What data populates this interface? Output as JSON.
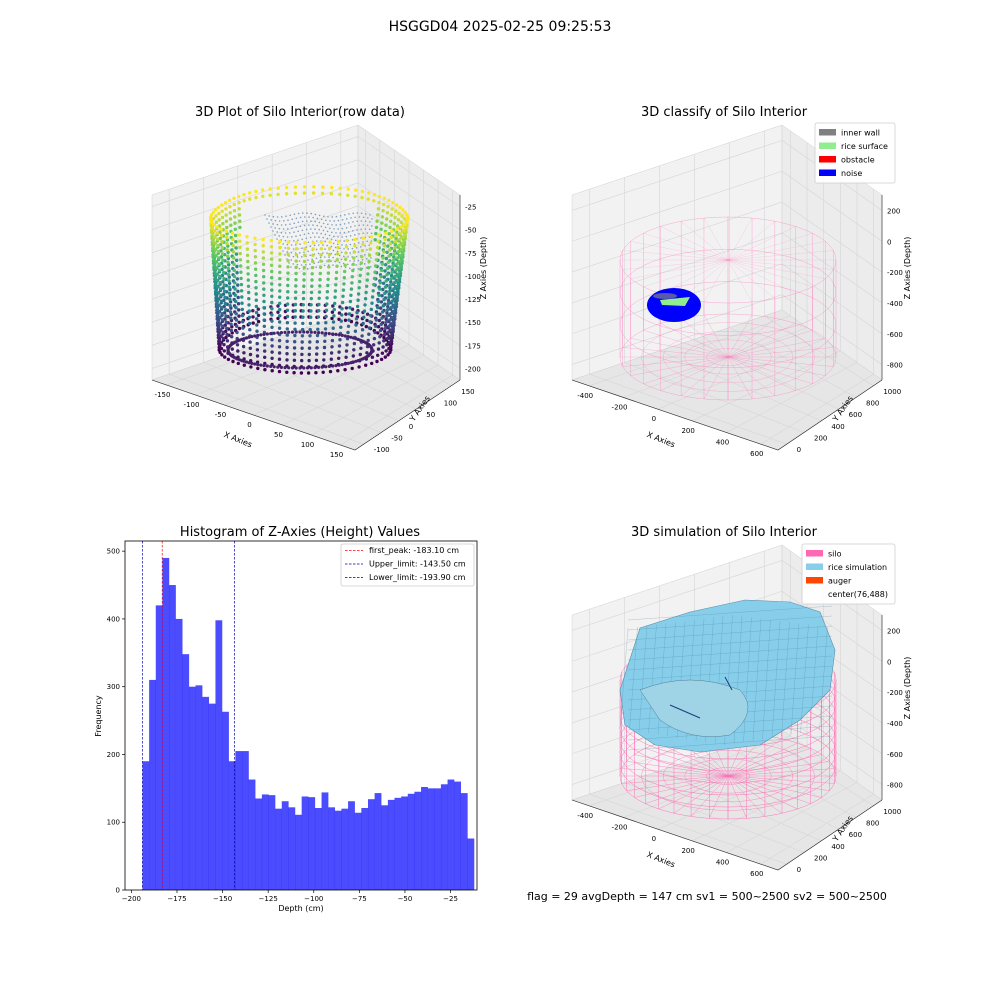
{
  "suptitle": "HSGGD04 2025-02-25 09:25:53",
  "footer": "flag = 29  avgDepth = 147 cm  sv1 = 500~2500  sv2 = 500~2500",
  "chart_data": [
    {
      "type": "scatter3d",
      "title": "3D Plot of Silo Interior(row data)",
      "xlabel": "X Axies",
      "ylabel": "Y Axies",
      "zlabel": "Z Axies (Depth)",
      "x_ticks": [
        "-150",
        "-100",
        "-50",
        "0",
        "50",
        "100",
        "150"
      ],
      "y_ticks": [
        "-100",
        "-50",
        "0",
        "50",
        "100",
        "150"
      ],
      "z_ticks": [
        "-25",
        "-50",
        "-75",
        "-100",
        "-125",
        "-150",
        "-175",
        "-200"
      ],
      "xlim": [
        -170,
        170
      ],
      "ylim": [
        -120,
        160
      ],
      "zlim": [
        -205,
        -15
      ],
      "colormap": "viridis",
      "grid": true
    },
    {
      "type": "scatter3d",
      "title": "3D classify of Silo Interior",
      "xlabel": "X Axies",
      "ylabel": "Y Axies",
      "zlabel": "Z Axies (Depth)",
      "x_ticks": [
        "-400",
        "-200",
        "0",
        "200",
        "400",
        "600"
      ],
      "y_ticks": [
        "0",
        "200",
        "400",
        "600",
        "800",
        "1000"
      ],
      "z_ticks": [
        "200",
        "0",
        "-200",
        "-400",
        "-600",
        "-800"
      ],
      "xlim": [
        -500,
        650
      ],
      "ylim": [
        -80,
        1050
      ],
      "zlim": [
        -900,
        300
      ],
      "legend_position": "upper right",
      "legend": [
        {
          "label": "inner wall",
          "color": "#808080"
        },
        {
          "label": "rice surface",
          "color": "#90ee90"
        },
        {
          "label": "obstacle",
          "color": "#ff0000"
        },
        {
          "label": "noise",
          "color": "#0000ff"
        }
      ],
      "silo_wire_color": "#ff69b4",
      "grid": true
    },
    {
      "type": "histogram",
      "title": "Histogram of Z-Axies (Height) Values",
      "xlabel": "Depth (cm)",
      "ylabel": "Frequency",
      "x_ticks": [
        -200,
        -175,
        -150,
        -125,
        -100,
        -75,
        -50,
        -25
      ],
      "y_ticks": [
        0,
        100,
        200,
        300,
        400,
        500
      ],
      "xlim": [
        -203.5,
        -10.5
      ],
      "ylim": [
        0,
        515
      ],
      "bin_start": -193.9,
      "bin_width": 3.636,
      "bar_color": "#0000ff",
      "counts": [
        190,
        310,
        420,
        490,
        450,
        400,
        348,
        300,
        302,
        285,
        275,
        398,
        263,
        190,
        205,
        205,
        163,
        135,
        141,
        140,
        120,
        131,
        122,
        111,
        138,
        137,
        121,
        144,
        122,
        117,
        120,
        131,
        114,
        121,
        134,
        143,
        125,
        133,
        136,
        138,
        142,
        145,
        152,
        150,
        150,
        156,
        163,
        160,
        143,
        76
      ],
      "vlines": [
        {
          "label": "first_peak: -183.10 cm",
          "x": -183.1,
          "color": "#ff0000"
        },
        {
          "label": "Upper_limit: -143.50 cm",
          "x": -143.5,
          "color": "#0000aa"
        },
        {
          "label": "Lower_limit: -193.90 cm",
          "x": -193.9,
          "color": "#0000aa"
        }
      ],
      "legend_position": "upper right",
      "grid": false
    },
    {
      "type": "surface3d",
      "title": "3D simulation of Silo Interior",
      "xlabel": "X Axies",
      "ylabel": "Y Axies",
      "zlabel": "Z Axies (Depth)",
      "x_ticks": [
        "-400",
        "-200",
        "0",
        "200",
        "400",
        "600"
      ],
      "y_ticks": [
        "0",
        "200",
        "400",
        "600",
        "800",
        "1000"
      ],
      "z_ticks": [
        "200",
        "0",
        "-200",
        "-400",
        "-600",
        "-800"
      ],
      "xlim": [
        -500,
        650
      ],
      "ylim": [
        -80,
        1050
      ],
      "zlim": [
        -900,
        300
      ],
      "legend_position": "upper right",
      "legend": [
        {
          "label": "silo",
          "color": "#ff69b4"
        },
        {
          "label": "rice simulation",
          "color": "#87ceeb"
        },
        {
          "label": "auger",
          "color": "#ff4500"
        },
        {
          "label": "center(76,488)",
          "color": ""
        }
      ],
      "surface_color": "#87ceeb",
      "grid": true
    }
  ]
}
